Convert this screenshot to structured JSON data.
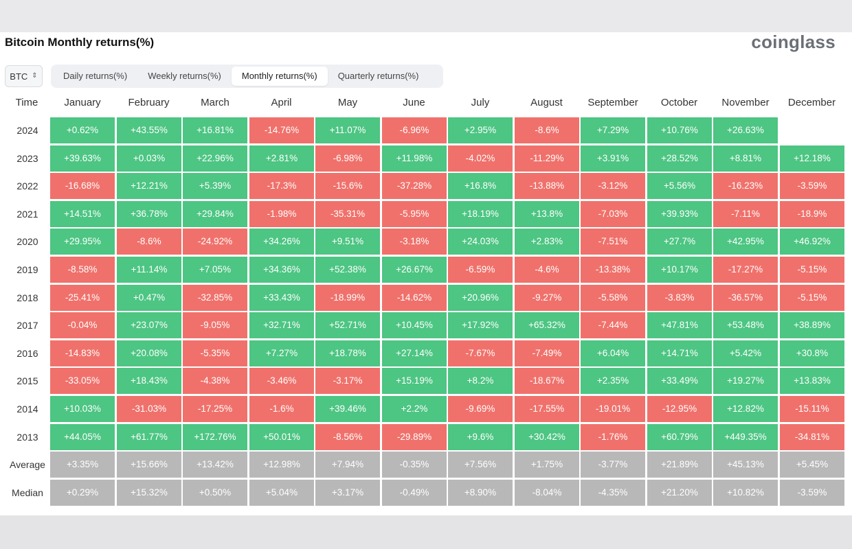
{
  "title": "Bitcoin Monthly returns(%)",
  "brand": "coinglass",
  "asset_select": {
    "value": "BTC"
  },
  "tabs": [
    {
      "label": "Daily returns(%)",
      "active": false
    },
    {
      "label": "Weekly returns(%)",
      "active": false
    },
    {
      "label": "Monthly returns(%)",
      "active": true
    },
    {
      "label": "Quarterly returns(%)",
      "active": false
    }
  ],
  "colors": {
    "positive": "#4dc583",
    "negative": "#f0716b",
    "summary": "#b8b8b8"
  },
  "chart_data": {
    "type": "table",
    "title": "Bitcoin Monthly returns(%)",
    "corner_label": "Time",
    "columns": [
      "January",
      "February",
      "March",
      "April",
      "May",
      "June",
      "July",
      "August",
      "September",
      "October",
      "November",
      "December"
    ],
    "rows": [
      {
        "label": "2024",
        "type": "year",
        "values": [
          "+0.62%",
          "+43.55%",
          "+16.81%",
          "-14.76%",
          "+11.07%",
          "-6.96%",
          "+2.95%",
          "-8.6%",
          "+7.29%",
          "+10.76%",
          "+26.63%",
          ""
        ]
      },
      {
        "label": "2023",
        "type": "year",
        "values": [
          "+39.63%",
          "+0.03%",
          "+22.96%",
          "+2.81%",
          "-6.98%",
          "+11.98%",
          "-4.02%",
          "-11.29%",
          "+3.91%",
          "+28.52%",
          "+8.81%",
          "+12.18%"
        ]
      },
      {
        "label": "2022",
        "type": "year",
        "values": [
          "-16.68%",
          "+12.21%",
          "+5.39%",
          "-17.3%",
          "-15.6%",
          "-37.28%",
          "+16.8%",
          "-13.88%",
          "-3.12%",
          "+5.56%",
          "-16.23%",
          "-3.59%"
        ]
      },
      {
        "label": "2021",
        "type": "year",
        "values": [
          "+14.51%",
          "+36.78%",
          "+29.84%",
          "-1.98%",
          "-35.31%",
          "-5.95%",
          "+18.19%",
          "+13.8%",
          "-7.03%",
          "+39.93%",
          "-7.11%",
          "-18.9%"
        ]
      },
      {
        "label": "2020",
        "type": "year",
        "values": [
          "+29.95%",
          "-8.6%",
          "-24.92%",
          "+34.26%",
          "+9.51%",
          "-3.18%",
          "+24.03%",
          "+2.83%",
          "-7.51%",
          "+27.7%",
          "+42.95%",
          "+46.92%"
        ]
      },
      {
        "label": "2019",
        "type": "year",
        "values": [
          "-8.58%",
          "+11.14%",
          "+7.05%",
          "+34.36%",
          "+52.38%",
          "+26.67%",
          "-6.59%",
          "-4.6%",
          "-13.38%",
          "+10.17%",
          "-17.27%",
          "-5.15%"
        ]
      },
      {
        "label": "2018",
        "type": "year",
        "values": [
          "-25.41%",
          "+0.47%",
          "-32.85%",
          "+33.43%",
          "-18.99%",
          "-14.62%",
          "+20.96%",
          "-9.27%",
          "-5.58%",
          "-3.83%",
          "-36.57%",
          "-5.15%"
        ]
      },
      {
        "label": "2017",
        "type": "year",
        "values": [
          "-0.04%",
          "+23.07%",
          "-9.05%",
          "+32.71%",
          "+52.71%",
          "+10.45%",
          "+17.92%",
          "+65.32%",
          "-7.44%",
          "+47.81%",
          "+53.48%",
          "+38.89%"
        ]
      },
      {
        "label": "2016",
        "type": "year",
        "values": [
          "-14.83%",
          "+20.08%",
          "-5.35%",
          "+7.27%",
          "+18.78%",
          "+27.14%",
          "-7.67%",
          "-7.49%",
          "+6.04%",
          "+14.71%",
          "+5.42%",
          "+30.8%"
        ]
      },
      {
        "label": "2015",
        "type": "year",
        "values": [
          "-33.05%",
          "+18.43%",
          "-4.38%",
          "-3.46%",
          "-3.17%",
          "+15.19%",
          "+8.2%",
          "-18.67%",
          "+2.35%",
          "+33.49%",
          "+19.27%",
          "+13.83%"
        ]
      },
      {
        "label": "2014",
        "type": "year",
        "values": [
          "+10.03%",
          "-31.03%",
          "-17.25%",
          "-1.6%",
          "+39.46%",
          "+2.2%",
          "-9.69%",
          "-17.55%",
          "-19.01%",
          "-12.95%",
          "+12.82%",
          "-15.11%"
        ]
      },
      {
        "label": "2013",
        "type": "year",
        "values": [
          "+44.05%",
          "+61.77%",
          "+172.76%",
          "+50.01%",
          "-8.56%",
          "-29.89%",
          "+9.6%",
          "+30.42%",
          "-1.76%",
          "+60.79%",
          "+449.35%",
          "-34.81%"
        ]
      },
      {
        "label": "Average",
        "type": "summary",
        "values": [
          "+3.35%",
          "+15.66%",
          "+13.42%",
          "+12.98%",
          "+7.94%",
          "-0.35%",
          "+7.56%",
          "+1.75%",
          "-3.77%",
          "+21.89%",
          "+45.13%",
          "+5.45%"
        ]
      },
      {
        "label": "Median",
        "type": "summary",
        "values": [
          "+0.29%",
          "+15.32%",
          "+0.50%",
          "+5.04%",
          "+3.17%",
          "-0.49%",
          "+8.90%",
          "-8.04%",
          "-4.35%",
          "+21.20%",
          "+10.82%",
          "-3.59%"
        ]
      }
    ]
  }
}
